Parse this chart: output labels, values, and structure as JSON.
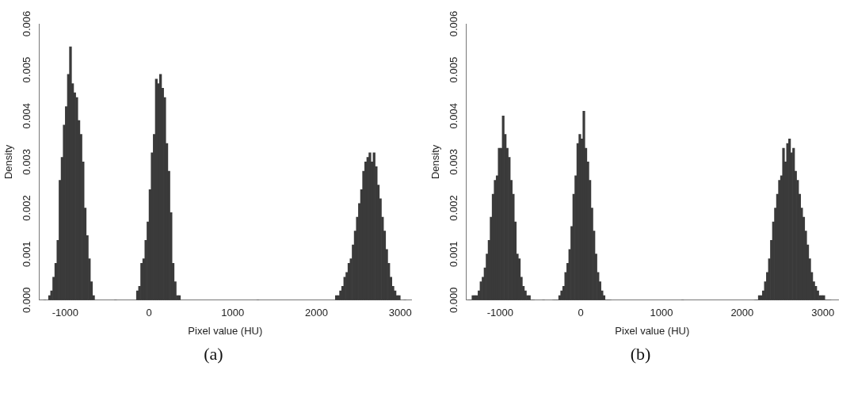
{
  "chart_data": [
    {
      "type": "histogram",
      "xlabel": "Pixel value (HU)",
      "ylabel": "Density",
      "color": "#3a3a3a",
      "grid": false,
      "legend": false,
      "annotations": [
        "(a)"
      ],
      "xlim": [
        -1310,
        3130
      ],
      "xticks": [
        -1000,
        0,
        1000,
        2000,
        3000
      ],
      "ylim": [
        0,
        0.006
      ],
      "yticks": [
        {
          "value": 0,
          "label": "0.000"
        },
        {
          "value": 0.001,
          "label": "0.001"
        },
        {
          "value": 0.002,
          "label": "0.002"
        },
        {
          "value": 0.003,
          "label": "0.003"
        },
        {
          "value": 0.004,
          "label": "0.004"
        },
        {
          "value": 0.005,
          "label": "0.005"
        },
        {
          "value": 0.006,
          "label": "0.006"
        }
      ],
      "bins": [
        -1290,
        -1200,
        -1175,
        -1150,
        -1125,
        -1100,
        -1075,
        -1050,
        -1025,
        -1000,
        -975,
        -950,
        -925,
        -900,
        -875,
        -850,
        -825,
        -800,
        -775,
        -750,
        -725,
        -700,
        -675,
        -650,
        -150,
        -125,
        -100,
        -75,
        -50,
        -25,
        0,
        25,
        50,
        75,
        100,
        125,
        150,
        175,
        200,
        225,
        250,
        275,
        300,
        325,
        350,
        375,
        2225,
        2250,
        2275,
        2300,
        2325,
        2350,
        2375,
        2400,
        2425,
        2450,
        2475,
        2500,
        2525,
        2550,
        2575,
        2600,
        2625,
        2650,
        2675,
        2700,
        2725,
        2750,
        2775,
        2800,
        2825,
        2850,
        2875,
        2900,
        2925,
        2950,
        2975,
        3000,
        3110
      ],
      "values": [
        0,
        0.0001,
        0.0002,
        0.0005,
        0.0008,
        0.0013,
        0.0026,
        0.0031,
        0.0038,
        0.0042,
        0.0049,
        0.0055,
        0.0047,
        0.0045,
        0.0044,
        0.0039,
        0.0036,
        0.003,
        0.002,
        0.0014,
        0.0009,
        0.0004,
        0.0001,
        0,
        0.0002,
        0.0003,
        0.0008,
        0.0009,
        0.0013,
        0.0017,
        0.0024,
        0.0032,
        0.0036,
        0.0048,
        0.0047,
        0.0049,
        0.0046,
        0.0044,
        0.0034,
        0.0028,
        0.0019,
        0.0008,
        0.0004,
        0.0001,
        0.0001,
        0,
        0.0001,
        0.0001,
        0.0002,
        0.0003,
        0.0005,
        0.0006,
        0.0008,
        0.0009,
        0.0012,
        0.0015,
        0.0018,
        0.0021,
        0.0024,
        0.0028,
        0.003,
        0.0031,
        0.0032,
        0.003,
        0.0032,
        0.0029,
        0.0025,
        0.0022,
        0.0018,
        0.0015,
        0.0011,
        0.0008,
        0.0005,
        0.0003,
        0.0002,
        0.0001,
        0.0001,
        0
      ]
    },
    {
      "type": "histogram",
      "xlabel": "Pixel value (HU)",
      "ylabel": "Density",
      "color": "#3a3a3a",
      "grid": false,
      "legend": false,
      "annotations": [
        "(b)"
      ],
      "xlim": [
        -1420,
        3190
      ],
      "xticks": [
        -1000,
        0,
        1000,
        2000,
        3000
      ],
      "ylim": [
        0,
        0.006
      ],
      "yticks": [
        {
          "value": 0,
          "label": "0.000"
        },
        {
          "value": 0.001,
          "label": "0.001"
        },
        {
          "value": 0.002,
          "label": "0.002"
        },
        {
          "value": 0.003,
          "label": "0.003"
        },
        {
          "value": 0.004,
          "label": "0.004"
        },
        {
          "value": 0.005,
          "label": "0.005"
        },
        {
          "value": 0.006,
          "label": "0.006"
        }
      ],
      "bins": [
        -1400,
        -1375,
        -1350,
        -1325,
        -1300,
        -1275,
        -1250,
        -1225,
        -1200,
        -1175,
        -1150,
        -1125,
        -1100,
        -1075,
        -1050,
        -1025,
        -1000,
        -975,
        -950,
        -925,
        -900,
        -875,
        -850,
        -825,
        -800,
        -775,
        -750,
        -725,
        -700,
        -675,
        -650,
        -625,
        -600,
        -575,
        -350,
        -325,
        -300,
        -275,
        -250,
        -225,
        -200,
        -175,
        -150,
        -125,
        -100,
        -75,
        -50,
        -25,
        0,
        25,
        50,
        75,
        100,
        125,
        150,
        175,
        200,
        225,
        250,
        275,
        300,
        325,
        350,
        375,
        2150,
        2175,
        2200,
        2225,
        2250,
        2275,
        2300,
        2325,
        2350,
        2375,
        2400,
        2425,
        2450,
        2475,
        2500,
        2525,
        2550,
        2575,
        2600,
        2625,
        2650,
        2675,
        2700,
        2725,
        2750,
        2775,
        2800,
        2825,
        2850,
        2875,
        2900,
        2925,
        2950,
        2975,
        3000,
        3025,
        3050,
        3075,
        3100
      ],
      "values": [
        0,
        0,
        0.0001,
        0.0001,
        0.0001,
        0.0002,
        0.0004,
        0.0005,
        0.0007,
        0.001,
        0.0013,
        0.0018,
        0.0023,
        0.0026,
        0.0027,
        0.0033,
        0.0033,
        0.004,
        0.0036,
        0.0033,
        0.0031,
        0.0026,
        0.0023,
        0.0017,
        0.001,
        0.0009,
        0.0005,
        0.0003,
        0.0002,
        0.0001,
        0.0001,
        0,
        0,
        0,
        0,
        0,
        0,
        0.0001,
        0.0002,
        0.0003,
        0.0006,
        0.0008,
        0.0011,
        0.0016,
        0.0023,
        0.0027,
        0.0034,
        0.0036,
        0.0035,
        0.0041,
        0.0033,
        0.003,
        0.0026,
        0.002,
        0.0015,
        0.001,
        0.0006,
        0.0004,
        0.0002,
        0.0001,
        0,
        0,
        0,
        0,
        0,
        0,
        0.0001,
        0.0001,
        0.0002,
        0.0004,
        0.0006,
        0.0009,
        0.0013,
        0.0017,
        0.002,
        0.0023,
        0.0026,
        0.0027,
        0.0033,
        0.003,
        0.0034,
        0.0035,
        0.0032,
        0.0033,
        0.0028,
        0.0026,
        0.0023,
        0.002,
        0.0018,
        0.0015,
        0.0012,
        0.0009,
        0.0006,
        0.0004,
        0.0003,
        0.0002,
        0.0001,
        0.0001,
        0.0001,
        0,
        0,
        0
      ]
    }
  ]
}
